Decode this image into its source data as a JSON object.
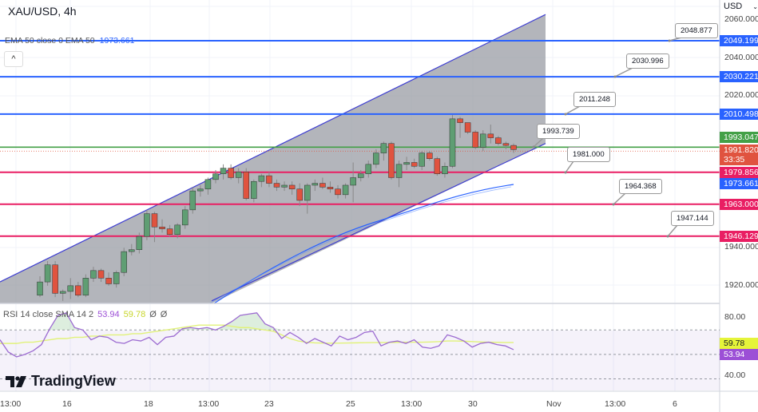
{
  "header": {
    "symbol_title": "XAU/USD, 4h",
    "ema_legend": "EMA 50 close 0 EMA 50",
    "ema_value": "1973.661",
    "collapse_icon": "chevron-up-icon"
  },
  "price_axis": {
    "currency": "USD",
    "ticks": [
      "2060.000",
      "2040.000",
      "2020.000",
      "1940.000",
      "1920.000"
    ],
    "tags": [
      {
        "value": "2049.199",
        "color": "#2962ff"
      },
      {
        "value": "2030.221",
        "color": "#2962ff"
      },
      {
        "value": "2010.498",
        "color": "#2962ff"
      },
      {
        "value": "1993.047",
        "color": "#43a047"
      },
      {
        "value": "1991.820",
        "color": "#e0533f",
        "countdown": "33:35"
      },
      {
        "value": "1979.856",
        "color": "#e91e63"
      },
      {
        "value": "1973.661",
        "color": "#2962ff"
      },
      {
        "value": "1963.000",
        "color": "#e91e63"
      },
      {
        "value": "1946.129",
        "color": "#e91e63"
      }
    ]
  },
  "rsi": {
    "legend": "RSI 14 close SMA 14 2",
    "rsi_value": "53.94",
    "sma_value": "59.78",
    "extra1": "Ø",
    "extra2": "Ø",
    "ticks": [
      "80.00",
      "40.00"
    ],
    "tag_sma": "59.78",
    "tag_rsi": "53.94"
  },
  "time_axis": {
    "labels": [
      "13:00",
      "16",
      "18",
      "13:00",
      "23",
      "25",
      "13:00",
      "30",
      "Nov",
      "13:00",
      "6"
    ]
  },
  "brand": {
    "name": "TradingView"
  },
  "callouts": [
    "2048.877",
    "2030.996",
    "2011.248",
    "1993.739",
    "1981.000",
    "1964.368",
    "1947.144"
  ],
  "chart_data": {
    "type": "candlestick",
    "title": "XAU/USD, 4h",
    "xlabel": "",
    "ylabel": "USD",
    "ylim": [
      1912,
      2063
    ],
    "grid": true,
    "x_ticks": [
      "13:00",
      "16",
      "18",
      "13:00",
      "23",
      "25",
      "13:00",
      "30",
      "Nov",
      "13:00",
      "6"
    ],
    "horizontal_levels": {
      "resistance_blue": [
        2049.199,
        2030.221,
        2010.498
      ],
      "current_green": 1993.047,
      "support_red": [
        1979.856,
        1963.0,
        1946.129
      ]
    },
    "annotations": [
      "2048.877",
      "2030.996",
      "2011.248",
      "1993.739",
      "1981.000",
      "1964.368",
      "1947.144"
    ],
    "last_price": 1991.82,
    "countdown": "33:35",
    "ema50": {
      "name": "EMA 50",
      "last": 1973.661
    },
    "ascending_channel": {
      "upper_start": [
        0,
        1922
      ],
      "upper_end": [
        683,
        2063
      ],
      "lower_start": [
        265,
        1912
      ],
      "lower_end": [
        683,
        1995
      ]
    },
    "candles_ohlc": [
      [
        1915,
        1925,
        1914,
        1922
      ],
      [
        1922,
        1933,
        1920,
        1931
      ],
      [
        1931,
        1933,
        1914,
        1916
      ],
      [
        1916,
        1918,
        1912,
        1917
      ],
      [
        1917,
        1924,
        1913,
        1920
      ],
      [
        1920,
        1922,
        1914,
        1915
      ],
      [
        1915,
        1926,
        1914,
        1924
      ],
      [
        1924,
        1930,
        1922,
        1928
      ],
      [
        1928,
        1929,
        1922,
        1924
      ],
      [
        1924,
        1927,
        1920,
        1921
      ],
      [
        1921,
        1928,
        1919,
        1927
      ],
      [
        1927,
        1940,
        1925,
        1938
      ],
      [
        1938,
        1942,
        1936,
        1939
      ],
      [
        1939,
        1948,
        1937,
        1946
      ],
      [
        1946,
        1960,
        1944,
        1958
      ],
      [
        1958,
        1959,
        1943,
        1951
      ],
      [
        1951,
        1955,
        1948,
        1950
      ],
      [
        1950,
        1952,
        1946,
        1947
      ],
      [
        1947,
        1953,
        1945,
        1952
      ],
      [
        1952,
        1962,
        1950,
        1960
      ],
      [
        1960,
        1972,
        1958,
        1970
      ],
      [
        1970,
        1973,
        1967,
        1971
      ],
      [
        1971,
        1977,
        1968,
        1976
      ],
      [
        1976,
        1981,
        1974,
        1979
      ],
      [
        1979,
        1984,
        1976,
        1982
      ],
      [
        1982,
        1984,
        1976,
        1977
      ],
      [
        1977,
        1982,
        1974,
        1980
      ],
      [
        1980,
        1982,
        1965,
        1966
      ],
      [
        1966,
        1976,
        1964,
        1975
      ],
      [
        1975,
        1979,
        1972,
        1978
      ],
      [
        1978,
        1980,
        1972,
        1974
      ],
      [
        1974,
        1976,
        1970,
        1972
      ],
      [
        1972,
        1975,
        1970,
        1973
      ],
      [
        1973,
        1975,
        1968,
        1971
      ],
      [
        1971,
        1974,
        1962,
        1965
      ],
      [
        1965,
        1974,
        1958,
        1973
      ],
      [
        1973,
        1976,
        1970,
        1974
      ],
      [
        1974,
        1977,
        1971,
        1972
      ],
      [
        1972,
        1975,
        1969,
        1971
      ],
      [
        1971,
        1973,
        1966,
        1968
      ],
      [
        1968,
        1974,
        1966,
        1973
      ],
      [
        1973,
        1985,
        1964,
        1977
      ],
      [
        1977,
        1981,
        1975,
        1979
      ],
      [
        1979,
        1986,
        1977,
        1984
      ],
      [
        1984,
        1992,
        1982,
        1990
      ],
      [
        1990,
        1996,
        1986,
        1995
      ],
      [
        1995,
        1996,
        1976,
        1977
      ],
      [
        1977,
        1986,
        1972,
        1984
      ],
      [
        1984,
        1988,
        1981,
        1985
      ],
      [
        1985,
        1987,
        1982,
        1983
      ],
      [
        1983,
        1991,
        1981,
        1990
      ],
      [
        1990,
        1991,
        1986,
        1987
      ],
      [
        1987,
        1988,
        1978,
        1979
      ],
      [
        1979,
        1985,
        1977,
        1983
      ],
      [
        1983,
        2010,
        1982,
        2008
      ],
      [
        2008,
        2009,
        1998,
        2006
      ],
      [
        2006,
        2006,
        2000,
        2001
      ],
      [
        2001,
        2002,
        1992,
        1993
      ],
      [
        1993,
        2002,
        1991,
        2000
      ],
      [
        2000,
        2005,
        1995,
        1998
      ],
      [
        1998,
        1999,
        1994,
        1995
      ],
      [
        1995,
        1996,
        1992,
        1994
      ],
      [
        1994,
        1995,
        1990,
        1991.8
      ]
    ],
    "rsi_series": {
      "name": "RSI 14",
      "last": 53.94,
      "sma_name": "SMA 14",
      "sma_last": 59.78,
      "levels": [
        70,
        50,
        30
      ],
      "ylim": [
        25,
        92
      ]
    }
  }
}
